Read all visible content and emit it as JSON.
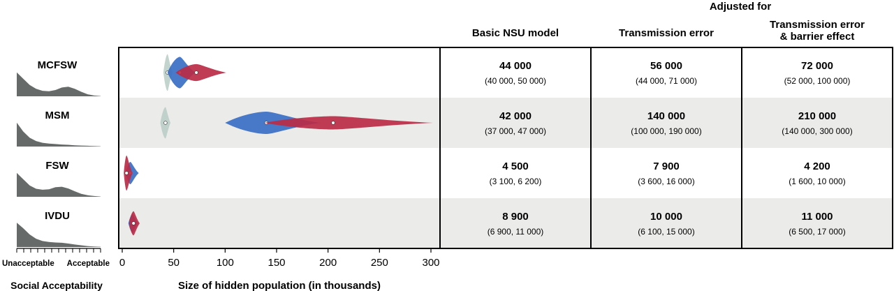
{
  "chart_data": {
    "type": "violin",
    "header": {
      "group_title": "Adjusted for",
      "columns": [
        {
          "label": "Basic NSU model",
          "color": "#000000"
        },
        {
          "label": "Transmission error",
          "color": "#2a55b8"
        },
        {
          "label_lines": [
            "Transmission error",
            "& barrier effect"
          ],
          "color": "#b01e2d"
        }
      ]
    },
    "xlabel": "Size of hidden population (in thousands)",
    "xlim": [
      0,
      310
    ],
    "xticks": [
      0,
      50,
      100,
      150,
      200,
      250,
      300
    ],
    "acceptability": {
      "xlabel": "Social Acceptability",
      "low_label": "Unacceptable",
      "high_label": "Acceptable",
      "color": "#666b6a"
    },
    "series_colors": {
      "basic": "#b9cdc7",
      "transmission": "#3a6ec4",
      "barrier": "#bb2b45"
    },
    "rows": [
      {
        "label": "MCFSW",
        "shaded": false,
        "basic": {
          "estimate": "44 000",
          "ci": "(40 000, 50 000)",
          "median": 44,
          "range": [
            40,
            49
          ],
          "width": 0.9
        },
        "transmission": {
          "estimate": "56 000",
          "ci": "(44 000, 71 000)",
          "median": 56,
          "range": [
            44,
            71
          ],
          "width": 0.75
        },
        "barrier": {
          "estimate": "72 000",
          "ci": "(52 000, 100 000)",
          "median": 72,
          "range": [
            52,
            101
          ],
          "width": 0.35
        },
        "acceptability_density": [
          0.95,
          0.7,
          0.45,
          0.3,
          0.22,
          0.2,
          0.25,
          0.35,
          0.38,
          0.3,
          0.18,
          0.08,
          0.03,
          0.01
        ]
      },
      {
        "label": "MSM",
        "shaded": true,
        "basic": {
          "estimate": "42 000",
          "ci": "(37 000, 47 000)",
          "median": 42,
          "range": [
            37,
            47
          ],
          "width": 0.75
        },
        "transmission": {
          "estimate": "140 000",
          "ci": "(100 000, 190 000)",
          "median": 140,
          "range": [
            100,
            192
          ],
          "width": 0.5
        },
        "barrier": {
          "estimate": "210 000",
          "ci": "(140 000, 300 000)",
          "median": 205,
          "range": [
            138,
            302
          ],
          "width": 0.25
        },
        "acceptability_density": [
          0.95,
          0.6,
          0.35,
          0.22,
          0.15,
          0.12,
          0.1,
          0.08,
          0.07,
          0.05,
          0.04,
          0.03,
          0.02,
          0.01
        ]
      },
      {
        "label": "FSW",
        "shaded": false,
        "basic": {
          "estimate": "4 500",
          "ci": "(3 100, 6 200)",
          "median": 4.5,
          "range": [
            3,
            6
          ],
          "width": 0.35
        },
        "transmission": {
          "estimate": "7 900",
          "ci": "(3 600, 16 000)",
          "median": 7.9,
          "range": [
            3.5,
            16
          ],
          "width": 0.5
        },
        "barrier": {
          "estimate": "4 200",
          "ci": "(1 600, 10 000)",
          "median": 4.2,
          "range": [
            1.5,
            10
          ],
          "width": 0.85
        },
        "acceptability_density": [
          0.95,
          0.7,
          0.45,
          0.32,
          0.28,
          0.3,
          0.38,
          0.4,
          0.33,
          0.22,
          0.12,
          0.06,
          0.03,
          0.01
        ]
      },
      {
        "label": "IVDU",
        "shaded": true,
        "basic": {
          "estimate": "8 900",
          "ci": "(6 900, 11 000)",
          "median": 8.9,
          "range": [
            6.5,
            11
          ],
          "width": 0.3
        },
        "transmission": {
          "estimate": "10 000",
          "ci": "(6 100, 15 000)",
          "median": 10,
          "range": [
            6,
            15
          ],
          "width": 0.4
        },
        "barrier": {
          "estimate": "11 000",
          "ci": "(6 500, 17 000)",
          "median": 11,
          "range": [
            6.5,
            17
          ],
          "width": 0.55
        },
        "acceptability_density": [
          0.97,
          0.75,
          0.5,
          0.33,
          0.24,
          0.2,
          0.18,
          0.17,
          0.14,
          0.1,
          0.07,
          0.04,
          0.02,
          0.01
        ]
      }
    ]
  }
}
